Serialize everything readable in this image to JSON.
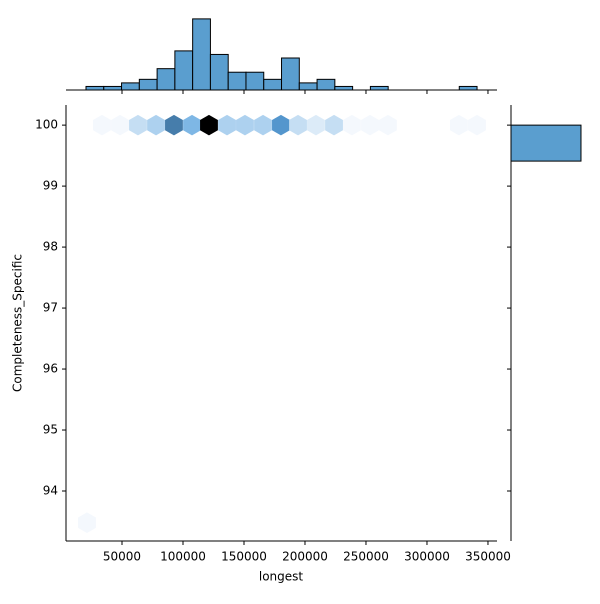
{
  "chart_data": [
    {
      "type": "hexbin",
      "xlabel": "longest",
      "ylabel": "Completeness_Specific",
      "x": [
        33600,
        48400,
        63100,
        77900,
        92600,
        107400,
        121300,
        136100,
        150800,
        165600,
        180300,
        194300,
        209000,
        223800,
        238500,
        253300,
        268000,
        326200,
        341000,
        21300
      ],
      "y": [
        100,
        100,
        100,
        100,
        100,
        100,
        100,
        100,
        100,
        100,
        100,
        100,
        100,
        100,
        100,
        100,
        100,
        100,
        100,
        93.48
      ],
      "counts": [
        1,
        1,
        3,
        4,
        9,
        6,
        14,
        4,
        4,
        4,
        8,
        3,
        2,
        3,
        1,
        1,
        1,
        1,
        1,
        1
      ],
      "colormap": [
        "#f4f8fd",
        "#5ba3de",
        "#000000"
      ],
      "xlim": [
        4100,
        357400
      ],
      "ylim": [
        93.18,
        100.33
      ],
      "xticks": [
        50000,
        100000,
        150000,
        200000,
        250000,
        300000,
        350000
      ],
      "yticks": [
        94,
        95,
        96,
        97,
        98,
        99,
        100
      ]
    },
    {
      "type": "histogram",
      "orientation": "vertical",
      "color": "#5a9ecf",
      "bins": [
        20500,
        35070,
        49640,
        64210,
        78780,
        93350,
        107920,
        122490,
        137060,
        151630,
        166200,
        180770,
        195340,
        209910,
        224480,
        239050,
        253620,
        268190,
        282760,
        297330,
        311900,
        326470,
        341040
      ],
      "counts": [
        1,
        1,
        2,
        3,
        6,
        11,
        20,
        10,
        5,
        5,
        3,
        9,
        2,
        3,
        1,
        0,
        1,
        0,
        0,
        0,
        0,
        1
      ],
      "ylim": [
        0,
        22.5
      ]
    },
    {
      "type": "histogram",
      "orientation": "horizontal",
      "color": "#5a9ecf",
      "bins": [
        99.41,
        100.0
      ],
      "counts": [
        83
      ],
      "xlim": [
        0,
        93.7
      ]
    }
  ]
}
